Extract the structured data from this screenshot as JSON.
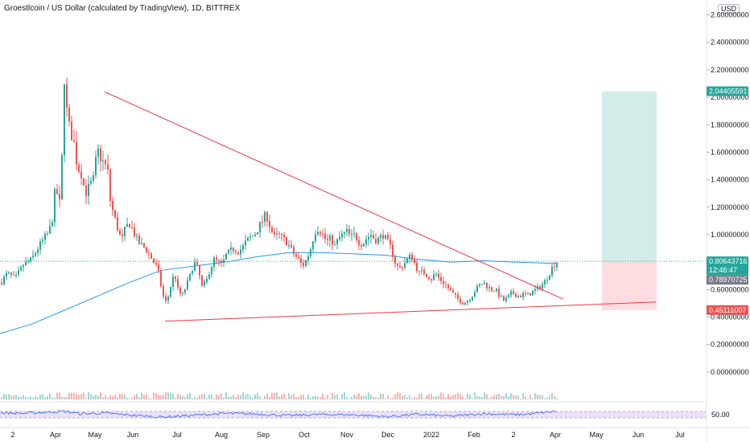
{
  "header": {
    "title": "Groestlcoin / US Dollar (calculated by TradingView), 1D, BITTREX",
    "currency_button": "USD"
  },
  "colors": {
    "up": "#26a69a",
    "down": "#ef5350",
    "trendline": "#f23645",
    "ma": "#2196f3",
    "target_zone": "#b2dfdb",
    "stop_zone": "#ffcdd2",
    "rsi_line": "#2962ff",
    "rsi_band": "#ede0fb"
  },
  "chart_data": {
    "type": "candlestick",
    "price_ylim": [
      -0.1,
      2.65
    ],
    "rsi_ylim": [
      0,
      100
    ],
    "price_ticks": [
      "2.60000000",
      "2.40000000",
      "2.20000000",
      "2.00000000",
      "1.80000000",
      "1.60000000",
      "1.40000000",
      "1.20000000",
      "1.00000000",
      "0.80000000",
      "0.60000000",
      "0.40000000",
      "0.20000000",
      "0.00000000"
    ],
    "x_ticks": [
      "2",
      "Apr",
      "May",
      "Jun",
      "Jul",
      "Aug",
      "Sep",
      "Oct",
      "Nov",
      "Dec",
      "2022",
      "Feb",
      "2",
      "Apr",
      "May",
      "Jun",
      "Jul"
    ],
    "rsi_tick": "50.00",
    "current_price_label": "0.80643716",
    "countdown_label": "12:46:47",
    "ma_value_label": "0.78970725",
    "target_label": "2.04405591",
    "stop_label": "0.45111007",
    "current_price": 0.80643716,
    "target_price": 2.04405591,
    "stop_price": 0.45111007,
    "ma_value": 0.78970725,
    "grid": false,
    "series": [
      {
        "type": "ohlc",
        "path": [
          [
            0,
            0.65
          ],
          [
            8,
            0.72
          ],
          [
            18,
            0.68
          ],
          [
            28,
            0.78
          ],
          [
            38,
            0.82
          ],
          [
            48,
            0.92
          ],
          [
            55,
            0.98
          ],
          [
            60,
            1.02
          ],
          [
            64,
            1.12
          ],
          [
            68,
            1.35
          ],
          [
            72,
            1.25
          ],
          [
            75,
            1.18
          ],
          [
            78,
            2.3
          ],
          [
            80,
            2.0
          ],
          [
            83,
            1.85
          ],
          [
            86,
            1.75
          ],
          [
            90,
            1.7
          ],
          [
            95,
            1.5
          ],
          [
            100,
            1.45
          ],
          [
            105,
            1.3
          ],
          [
            110,
            1.35
          ],
          [
            115,
            1.4
          ],
          [
            120,
            1.62
          ],
          [
            125,
            1.55
          ],
          [
            130,
            1.5
          ],
          [
            133,
            1.45
          ],
          [
            136,
            1.25
          ],
          [
            140,
            1.15
          ],
          [
            145,
            1.05
          ],
          [
            150,
            0.95
          ],
          [
            155,
            1.05
          ],
          [
            160,
            1.08
          ],
          [
            165,
            1.02
          ],
          [
            170,
            0.95
          ],
          [
            175,
            0.92
          ],
          [
            180,
            0.9
          ],
          [
            185,
            0.85
          ],
          [
            190,
            0.8
          ],
          [
            195,
            0.75
          ],
          [
            200,
            0.6
          ],
          [
            204,
            0.5
          ],
          [
            208,
            0.55
          ],
          [
            212,
            0.65
          ],
          [
            216,
            0.72
          ],
          [
            220,
            0.6
          ],
          [
            225,
            0.55
          ],
          [
            230,
            0.62
          ],
          [
            235,
            0.7
          ],
          [
            240,
            0.8
          ],
          [
            245,
            0.75
          ],
          [
            250,
            0.62
          ],
          [
            255,
            0.65
          ],
          [
            260,
            0.75
          ],
          [
            265,
            0.82
          ],
          [
            270,
            0.8
          ],
          [
            275,
            0.78
          ],
          [
            280,
            0.85
          ],
          [
            285,
            0.88
          ],
          [
            290,
            0.9
          ],
          [
            295,
            0.88
          ],
          [
            300,
            0.9
          ],
          [
            305,
            0.95
          ],
          [
            310,
            0.98
          ],
          [
            315,
            1.0
          ],
          [
            320,
            1.05
          ],
          [
            325,
            1.1
          ],
          [
            330,
            1.15
          ],
          [
            335,
            1.05
          ],
          [
            340,
            0.98
          ],
          [
            345,
            1.0
          ],
          [
            350,
            0.97
          ],
          [
            355,
            0.95
          ],
          [
            360,
            0.9
          ],
          [
            365,
            0.85
          ],
          [
            370,
            0.82
          ],
          [
            375,
            0.77
          ],
          [
            380,
            0.82
          ],
          [
            385,
            0.9
          ],
          [
            390,
            1.02
          ],
          [
            395,
            1.05
          ],
          [
            400,
            1.0
          ],
          [
            405,
            0.95
          ],
          [
            410,
            0.97
          ],
          [
            415,
            0.92
          ],
          [
            420,
            0.97
          ],
          [
            425,
            1.0
          ],
          [
            430,
            1.02
          ],
          [
            435,
            0.98
          ],
          [
            440,
            1.0
          ],
          [
            445,
            0.95
          ],
          [
            450,
            0.93
          ],
          [
            455,
            0.98
          ],
          [
            460,
            1.0
          ],
          [
            465,
            0.96
          ],
          [
            470,
            0.97
          ],
          [
            475,
            1.0
          ],
          [
            480,
            0.95
          ],
          [
            485,
            0.9
          ],
          [
            490,
            0.8
          ],
          [
            495,
            0.75
          ],
          [
            500,
            0.78
          ],
          [
            505,
            0.82
          ],
          [
            510,
            0.85
          ],
          [
            515,
            0.78
          ],
          [
            520,
            0.72
          ],
          [
            525,
            0.73
          ],
          [
            530,
            0.7
          ],
          [
            535,
            0.68
          ],
          [
            540,
            0.72
          ],
          [
            545,
            0.68
          ],
          [
            550,
            0.65
          ],
          [
            555,
            0.62
          ],
          [
            560,
            0.58
          ],
          [
            565,
            0.55
          ],
          [
            570,
            0.52
          ],
          [
            575,
            0.5
          ],
          [
            580,
            0.52
          ],
          [
            585,
            0.55
          ],
          [
            590,
            0.6
          ],
          [
            595,
            0.63
          ],
          [
            600,
            0.65
          ],
          [
            605,
            0.62
          ],
          [
            610,
            0.6
          ],
          [
            615,
            0.6
          ],
          [
            620,
            0.55
          ],
          [
            625,
            0.52
          ],
          [
            630,
            0.54
          ],
          [
            635,
            0.58
          ],
          [
            640,
            0.56
          ],
          [
            645,
            0.55
          ],
          [
            650,
            0.57
          ],
          [
            655,
            0.56
          ],
          [
            660,
            0.58
          ],
          [
            665,
            0.6
          ],
          [
            670,
            0.62
          ],
          [
            675,
            0.65
          ],
          [
            680,
            0.7
          ],
          [
            685,
            0.76
          ],
          [
            690,
            0.8
          ],
          [
            692,
            0.806
          ]
        ]
      },
      {
        "type": "ma",
        "path": [
          [
            0,
            0.28
          ],
          [
            40,
            0.35
          ],
          [
            80,
            0.45
          ],
          [
            120,
            0.55
          ],
          [
            160,
            0.65
          ],
          [
            200,
            0.74
          ],
          [
            240,
            0.77
          ],
          [
            280,
            0.8
          ],
          [
            320,
            0.84
          ],
          [
            360,
            0.87
          ],
          [
            400,
            0.87
          ],
          [
            440,
            0.86
          ],
          [
            480,
            0.85
          ],
          [
            520,
            0.82
          ],
          [
            560,
            0.8
          ],
          [
            600,
            0.81
          ],
          [
            640,
            0.8
          ],
          [
            692,
            0.79
          ]
        ]
      }
    ],
    "trendlines": [
      {
        "from": [
          130,
          2.04
        ],
        "to": [
          700,
          0.53
        ]
      },
      {
        "from": [
          205,
          0.37
        ],
        "to": [
          815,
          0.51
        ]
      }
    ],
    "rsi": {
      "path": [
        [
          0,
          62
        ],
        [
          30,
          58
        ],
        [
          60,
          66
        ],
        [
          80,
          72
        ],
        [
          100,
          55
        ],
        [
          130,
          60
        ],
        [
          160,
          48
        ],
        [
          200,
          35
        ],
        [
          240,
          46
        ],
        [
          280,
          58
        ],
        [
          320,
          54
        ],
        [
          360,
          44
        ],
        [
          400,
          52
        ],
        [
          440,
          49
        ],
        [
          480,
          38
        ],
        [
          520,
          52
        ],
        [
          560,
          40
        ],
        [
          600,
          56
        ],
        [
          640,
          50
        ],
        [
          660,
          55
        ],
        [
          680,
          66
        ],
        [
          692,
          72
        ]
      ]
    }
  }
}
